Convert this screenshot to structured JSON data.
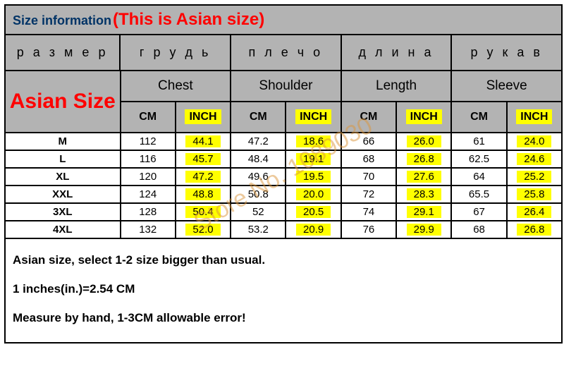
{
  "title": {
    "label": "Size information",
    "note": "(This is Asian size)"
  },
  "watermark": "Store No. 1089030",
  "headers_ru": [
    "р а з м е р",
    "г р у д ь",
    "п л е ч о",
    "д л и н а",
    "р у к а в"
  ],
  "asian_label": "Asian Size",
  "headers_en": [
    "Chest",
    "Shoulder",
    "Length",
    "Sleeve"
  ],
  "units": {
    "cm": "CM",
    "inch": "INCH"
  },
  "rows": [
    {
      "size": "M",
      "vals": [
        [
          "112",
          "44.1"
        ],
        [
          "47.2",
          "18.6"
        ],
        [
          "66",
          "26.0"
        ],
        [
          "61",
          "24.0"
        ]
      ]
    },
    {
      "size": "L",
      "vals": [
        [
          "116",
          "45.7"
        ],
        [
          "48.4",
          "19.1"
        ],
        [
          "68",
          "26.8"
        ],
        [
          "62.5",
          "24.6"
        ]
      ]
    },
    {
      "size": "XL",
      "vals": [
        [
          "120",
          "47.2"
        ],
        [
          "49.6",
          "19.5"
        ],
        [
          "70",
          "27.6"
        ],
        [
          "64",
          "25.2"
        ]
      ]
    },
    {
      "size": "XXL",
      "vals": [
        [
          "124",
          "48.8"
        ],
        [
          "50.8",
          "20.0"
        ],
        [
          "72",
          "28.3"
        ],
        [
          "65.5",
          "25.8"
        ]
      ]
    },
    {
      "size": "3XL",
      "vals": [
        [
          "128",
          "50.4"
        ],
        [
          "52",
          "20.5"
        ],
        [
          "74",
          "29.1"
        ],
        [
          "67",
          "26.4"
        ]
      ]
    },
    {
      "size": "4XL",
      "vals": [
        [
          "132",
          "52.0"
        ],
        [
          "53.2",
          "20.9"
        ],
        [
          "76",
          "29.9"
        ],
        [
          "68",
          "26.8"
        ]
      ]
    }
  ],
  "notes": [
    "Asian size, select 1-2 size bigger than usual.",
    "1 inches(in.)=2.54 CM",
    "Measure by hand, 1-3CM allowable error!"
  ],
  "colors": {
    "header_bg": "#b3b3b3",
    "highlight": "#ffff00",
    "accent": "#ff0000",
    "title_color": "#003366",
    "border": "#000000"
  }
}
